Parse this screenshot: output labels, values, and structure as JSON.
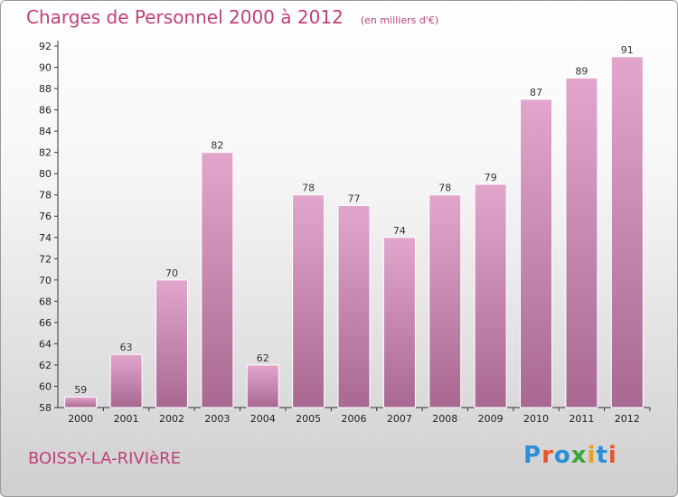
{
  "header": {
    "title": "Charges de Personnel 2000 à 2012",
    "unit": "(en milliers d'€)"
  },
  "footer": {
    "place": "BOISSY-LA-RIVIèRE",
    "logo_letters": [
      "P",
      "r",
      "o",
      "x",
      "i",
      "t",
      "i"
    ],
    "logo_colors": [
      "#2a8fd6",
      "#e8552a",
      "#2a8fd6",
      "#3aa63a",
      "#e8a020",
      "#2a8fd6",
      "#e8552a"
    ]
  },
  "colors": {
    "bar_top": "#e2a6cd",
    "bar_bottom": "#a86892",
    "accent": "#c0407a"
  },
  "chart_data": {
    "type": "bar",
    "categories": [
      "2000",
      "2001",
      "2002",
      "2003",
      "2004",
      "2005",
      "2006",
      "2007",
      "2008",
      "2009",
      "2010",
      "2011",
      "2012"
    ],
    "values": [
      59,
      63,
      70,
      82,
      62,
      78,
      77,
      74,
      78,
      79,
      87,
      89,
      91
    ],
    "title": "Charges de Personnel 2000 à 2012",
    "ylim": [
      58,
      92
    ],
    "yticks": [
      58,
      60,
      62,
      64,
      66,
      68,
      70,
      72,
      74,
      76,
      78,
      80,
      82,
      84,
      86,
      88,
      90,
      92
    ],
    "grid": false,
    "legend": "none"
  }
}
